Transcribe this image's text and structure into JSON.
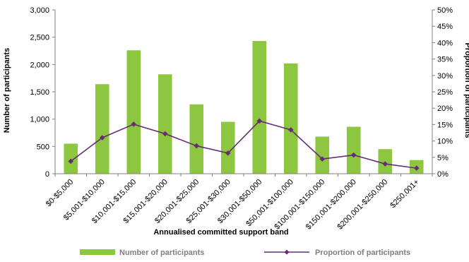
{
  "chart_data": {
    "type": "bar",
    "categories": [
      "$0-$5,000",
      "$5,001-$10,000",
      "$10,001-$15,000",
      "$15,001-$20,000",
      "$20,001-$25,000",
      "$25,001-$30,000",
      "$30,001-$50,000",
      "$50,001-$100,000",
      "$100,001-$150,000",
      "$150,001-$200,000",
      "$200,001-$250,000",
      "$250,001+"
    ],
    "series": [
      {
        "name": "Number of participants",
        "type": "bar",
        "axis": "left",
        "color": "#8dc63f",
        "values": [
          550,
          1640,
          2260,
          1820,
          1270,
          950,
          2430,
          2020,
          680,
          860,
          450,
          250
        ]
      },
      {
        "name": "Proportion of participants",
        "type": "line",
        "axis": "right",
        "color": "#652d75",
        "values": [
          3.8,
          11.0,
          15.1,
          12.2,
          8.5,
          6.3,
          16.1,
          13.4,
          4.5,
          5.7,
          3.0,
          1.7
        ]
      }
    ],
    "xlabel": "Annualised committed support band",
    "ylabel": "Number of participants",
    "y2label": "Proportion of participants",
    "ylim": [
      0,
      3000
    ],
    "y2lim": [
      0,
      50
    ],
    "yticks": [
      "0",
      "500",
      "1,000",
      "1,500",
      "2,000",
      "2,500",
      "3,000"
    ],
    "y2ticks": [
      "0%",
      "5%",
      "10%",
      "15%",
      "20%",
      "25%",
      "30%",
      "35%",
      "40%",
      "45%",
      "50%"
    ],
    "legend_position": "bottom",
    "grid": false
  }
}
